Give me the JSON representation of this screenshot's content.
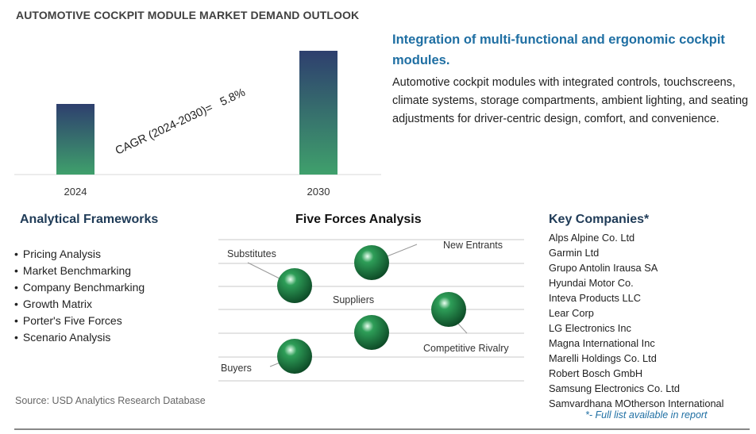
{
  "header": {
    "title": "AUTOMOTIVE COCKPIT MODULE MARKET DEMAND OUTLOOK"
  },
  "chart_data": {
    "type": "bar",
    "categories": [
      "2024",
      "2030"
    ],
    "annotation": "CAGR (2024-2030)=   5.8%",
    "cagr": 5.8,
    "colors": {
      "bar_top": "#2e3f6e",
      "bar_bottom": "#3fa06c"
    }
  },
  "highlight": {
    "title": "Integration of multi-functional and ergonomic cockpit modules.",
    "description": "Automotive cockpit modules with integrated controls, touchscreens, climate systems, storage compartments, ambient lighting, and seating adjustments for driver-centric design, comfort, and convenience."
  },
  "frameworks": {
    "title": "Analytical Frameworks",
    "items": [
      "Pricing Analysis",
      "Market Benchmarking",
      "Company Benchmarking",
      "Growth Matrix",
      "Porter's Five Forces",
      "Scenario Analysis"
    ]
  },
  "five_forces": {
    "title": "Five Forces Analysis",
    "labels": {
      "substitutes": "Substitutes",
      "new_entrants": "New Entrants",
      "suppliers": "Suppliers",
      "competitive_rivalry": "Competitive Rivalry",
      "buyers": "Buyers"
    },
    "sphere_color": "#2e9e58"
  },
  "companies": {
    "title": "Key Companies*",
    "items": [
      "Alps Alpine Co. Ltd",
      "Garmin Ltd",
      "Grupo Antolin Irausa SA",
      "Hyundai Motor Co.",
      "Inteva Products LLC",
      "Lear Corp",
      "LG Electronics Inc",
      "Magna International Inc",
      "Marelli Holdings Co. Ltd",
      "Robert Bosch GmbH",
      "Samsung Electronics Co. Ltd",
      "Samvardhana MOtherson International"
    ],
    "note": "*- Full list available in report"
  },
  "footer": {
    "source": "Source: USD Analytics Research Database"
  }
}
